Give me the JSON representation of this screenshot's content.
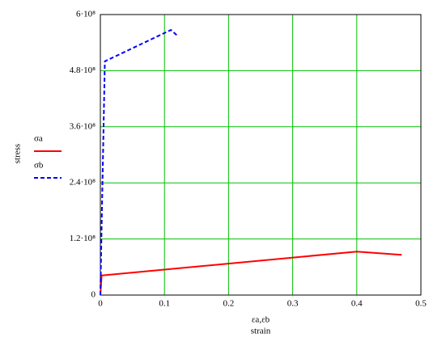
{
  "chart_data": {
    "type": "line",
    "y_label": "stress",
    "x_label_top": "εa,εb",
    "x_label": "strain",
    "xlim": [
      0,
      0.5
    ],
    "xticks": [
      0,
      0.1,
      0.2,
      0.3,
      0.4,
      0.5
    ],
    "ylim": [
      0,
      600000000
    ],
    "yticks": [
      0,
      {
        "value": 120000000,
        "label": "1.2·10⁸"
      },
      {
        "value": 240000000,
        "label": "2.4·10⁸"
      },
      {
        "value": 360000000,
        "label": "3.6·10⁸"
      },
      {
        "value": 480000000,
        "label": "4.8·10⁸"
      },
      {
        "value": 600000000,
        "label": "6·10⁸"
      }
    ],
    "grid": true,
    "grid_color": "#00c000",
    "series": [
      {
        "name": "σa",
        "color": "#ff0000",
        "dash": false,
        "x": [
          0,
          0.002,
          0.4,
          0.47
        ],
        "values": [
          0,
          42000000,
          93000000,
          86000000
        ]
      },
      {
        "name": "σb",
        "color": "#0000ff",
        "dash": true,
        "x": [
          0,
          0.002,
          0.007,
          0.11,
          0.12
        ],
        "values": [
          0,
          150000000,
          500000000,
          567000000,
          555000000
        ]
      }
    ]
  }
}
